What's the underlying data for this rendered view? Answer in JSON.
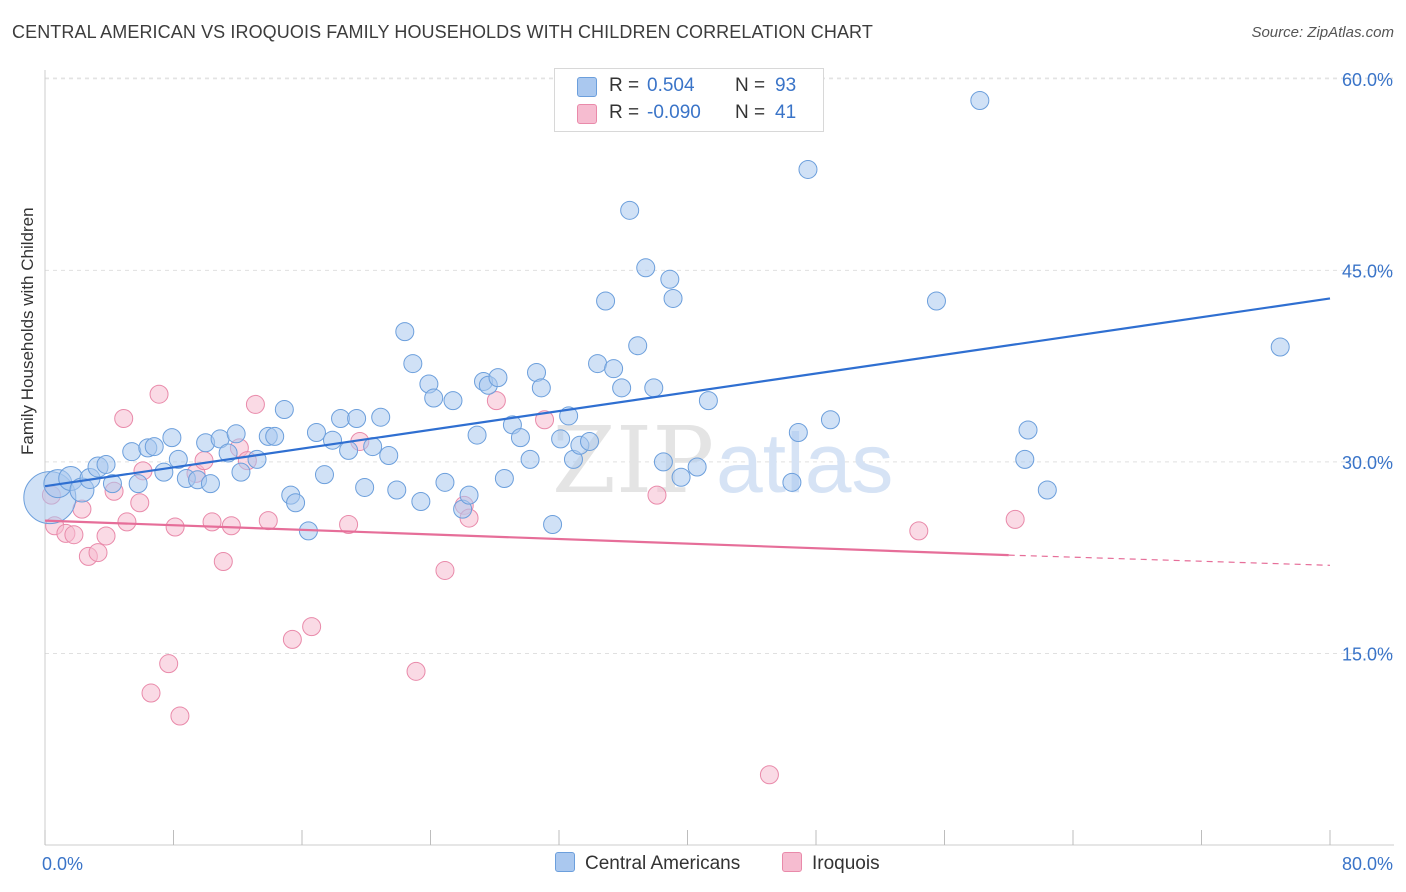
{
  "title": "CENTRAL AMERICAN VS IROQUOIS FAMILY HOUSEHOLDS WITH CHILDREN CORRELATION CHART",
  "source": "Source: ZipAtlas.com",
  "watermark": {
    "part1": "ZIP",
    "part2": "atlas"
  },
  "legend": {
    "rows": [
      {
        "r_label": "R =",
        "r_value": "0.504",
        "n_label": "N =",
        "n_value": "93",
        "color": "#aac8ef",
        "stroke": "#6c9fdc"
      },
      {
        "r_label": "R =",
        "r_value": "-0.090",
        "n_label": "N =",
        "n_value": "41",
        "color": "#f6bcd0",
        "stroke": "#e98aaa"
      }
    ]
  },
  "bottom_legend": {
    "series1": "Central Americans",
    "series2": "Iroquois"
  },
  "chart_data": {
    "type": "scatter",
    "title": "CENTRAL AMERICAN VS IROQUOIS FAMILY HOUSEHOLDS WITH CHILDREN CORRELATION CHART",
    "xlabel": "",
    "ylabel": "Family Households with Children",
    "xlim": [
      0,
      80
    ],
    "ylim": [
      0,
      62
    ],
    "x_tick_labels": [
      "0.0%",
      "80.0%"
    ],
    "y_ticks": [
      15,
      30,
      45,
      60
    ],
    "y_tick_labels": [
      "15.0%",
      "30.0%",
      "45.0%",
      "60.0%"
    ],
    "grid": "horizontal dashed",
    "legend_position": "top-center",
    "colors": {
      "blue": "#3a74d0",
      "pink": "#e66e99",
      "axis_text": "#3a74c8"
    },
    "series": [
      {
        "name": "Central Americans",
        "color": "#aac8ef",
        "stroke": "#6c9fdc",
        "trend": {
          "x": [
            0,
            80
          ],
          "y": [
            28.1,
            42.8
          ],
          "color": "#2f6fd1"
        },
        "points": [
          [
            0.3,
            27.2,
            26
          ],
          [
            0.8,
            28.3,
            14
          ],
          [
            1.6,
            28.7,
            12
          ],
          [
            2.3,
            27.8,
            12
          ],
          [
            2.8,
            28.7,
            10
          ],
          [
            3.3,
            29.6,
            10
          ],
          [
            3.8,
            29.8,
            9
          ],
          [
            4.2,
            28.3,
            9
          ],
          [
            5.4,
            30.8,
            9
          ],
          [
            5.8,
            28.3,
            9
          ],
          [
            6.4,
            31.1,
            9
          ],
          [
            6.8,
            31.2,
            9
          ],
          [
            7.4,
            29.2,
            9
          ],
          [
            7.9,
            31.9,
            9
          ],
          [
            8.3,
            30.2,
            9
          ],
          [
            8.8,
            28.7,
            9
          ],
          [
            9.5,
            28.6,
            9
          ],
          [
            10.0,
            31.5,
            9
          ],
          [
            10.3,
            28.3,
            9
          ],
          [
            10.9,
            31.8,
            9
          ],
          [
            11.4,
            30.7,
            9
          ],
          [
            11.9,
            32.2,
            9
          ],
          [
            12.2,
            29.2,
            9
          ],
          [
            13.2,
            30.2,
            9
          ],
          [
            13.9,
            32.0,
            9
          ],
          [
            14.3,
            32.0,
            9
          ],
          [
            14.9,
            34.1,
            9
          ],
          [
            15.3,
            27.4,
            9
          ],
          [
            15.6,
            26.8,
            9
          ],
          [
            16.4,
            24.6,
            9
          ],
          [
            16.9,
            32.3,
            9
          ],
          [
            17.4,
            29.0,
            9
          ],
          [
            17.9,
            31.7,
            9
          ],
          [
            18.4,
            33.4,
            9
          ],
          [
            18.9,
            30.9,
            9
          ],
          [
            19.4,
            33.4,
            9
          ],
          [
            19.9,
            28.0,
            9
          ],
          [
            20.4,
            31.2,
            9
          ],
          [
            20.9,
            33.5,
            9
          ],
          [
            21.4,
            30.5,
            9
          ],
          [
            21.9,
            27.8,
            9
          ],
          [
            22.4,
            40.2,
            9
          ],
          [
            22.9,
            37.7,
            9
          ],
          [
            23.4,
            26.9,
            9
          ],
          [
            23.9,
            36.1,
            9
          ],
          [
            24.2,
            35.0,
            9
          ],
          [
            24.9,
            28.4,
            9
          ],
          [
            25.4,
            34.8,
            9
          ],
          [
            26.0,
            26.3,
            9
          ],
          [
            26.4,
            27.4,
            9
          ],
          [
            26.9,
            32.1,
            9
          ],
          [
            27.3,
            36.3,
            9
          ],
          [
            27.6,
            36.0,
            9
          ],
          [
            28.2,
            36.6,
            9
          ],
          [
            28.6,
            28.7,
            9
          ],
          [
            29.1,
            32.9,
            9
          ],
          [
            29.6,
            31.9,
            9
          ],
          [
            30.2,
            30.2,
            9
          ],
          [
            30.6,
            37.0,
            9
          ],
          [
            30.9,
            35.8,
            9
          ],
          [
            31.6,
            25.1,
            9
          ],
          [
            32.1,
            31.8,
            9
          ],
          [
            32.6,
            33.6,
            9
          ],
          [
            32.9,
            30.2,
            9
          ],
          [
            33.3,
            31.3,
            9
          ],
          [
            33.9,
            31.6,
            9
          ],
          [
            34.4,
            37.7,
            9
          ],
          [
            34.9,
            42.6,
            9
          ],
          [
            35.4,
            37.3,
            9
          ],
          [
            35.9,
            35.8,
            9
          ],
          [
            36.4,
            49.7,
            9
          ],
          [
            36.9,
            39.1,
            9
          ],
          [
            37.4,
            45.2,
            9
          ],
          [
            37.9,
            35.8,
            9
          ],
          [
            38.5,
            30.0,
            9
          ],
          [
            38.9,
            44.3,
            9
          ],
          [
            39.1,
            42.8,
            9
          ],
          [
            39.6,
            28.8,
            9
          ],
          [
            40.6,
            29.6,
            9
          ],
          [
            41.3,
            34.8,
            9
          ],
          [
            46.5,
            28.4,
            9
          ],
          [
            46.9,
            32.3,
            9
          ],
          [
            47.5,
            52.9,
            9
          ],
          [
            48.9,
            33.3,
            9
          ],
          [
            55.5,
            42.6,
            9
          ],
          [
            58.2,
            58.3,
            9
          ],
          [
            61.0,
            30.2,
            9
          ],
          [
            61.2,
            32.5,
            9
          ],
          [
            62.4,
            27.8,
            9
          ],
          [
            76.9,
            39.0,
            9
          ]
        ]
      },
      {
        "name": "Iroquois",
        "color": "#f6bcd0",
        "stroke": "#e98aaa",
        "trend": {
          "x": [
            0,
            60
          ],
          "y": [
            25.4,
            22.7
          ],
          "dash_to": [
            80,
            21.9
          ],
          "color": "#e66e99"
        },
        "points": [
          [
            0.6,
            25.0,
            9
          ],
          [
            1.3,
            24.4,
            9
          ],
          [
            1.8,
            24.3,
            9
          ],
          [
            2.3,
            26.3,
            9
          ],
          [
            2.7,
            22.6,
            9
          ],
          [
            3.3,
            22.9,
            9
          ],
          [
            3.8,
            24.2,
            9
          ],
          [
            4.3,
            27.7,
            9
          ],
          [
            4.9,
            33.4,
            9
          ],
          [
            5.1,
            25.3,
            9
          ],
          [
            5.9,
            26.8,
            9
          ],
          [
            6.1,
            29.3,
            9
          ],
          [
            6.6,
            11.9,
            9
          ],
          [
            7.1,
            35.3,
            9
          ],
          [
            7.7,
            14.2,
            9
          ],
          [
            8.1,
            24.9,
            9
          ],
          [
            8.4,
            10.1,
            9
          ],
          [
            9.4,
            29.1,
            9
          ],
          [
            9.9,
            30.1,
            9
          ],
          [
            10.4,
            25.3,
            9
          ],
          [
            11.1,
            22.2,
            9
          ],
          [
            11.6,
            25.0,
            9
          ],
          [
            12.1,
            31.1,
            9
          ],
          [
            12.6,
            30.1,
            9
          ],
          [
            13.1,
            34.5,
            9
          ],
          [
            13.9,
            25.4,
            9
          ],
          [
            15.4,
            16.1,
            9
          ],
          [
            16.6,
            17.1,
            9
          ],
          [
            18.9,
            25.1,
            9
          ],
          [
            19.6,
            31.6,
            9
          ],
          [
            23.1,
            13.6,
            9
          ],
          [
            24.9,
            21.5,
            9
          ],
          [
            26.1,
            26.6,
            9
          ],
          [
            26.4,
            25.6,
            9
          ],
          [
            28.1,
            34.8,
            9
          ],
          [
            31.1,
            33.3,
            9
          ],
          [
            38.1,
            27.4,
            9
          ],
          [
            45.1,
            5.5,
            9
          ],
          [
            54.4,
            24.6,
            9
          ],
          [
            60.4,
            25.5,
            9
          ],
          [
            0.4,
            27.4,
            9
          ]
        ]
      }
    ]
  }
}
